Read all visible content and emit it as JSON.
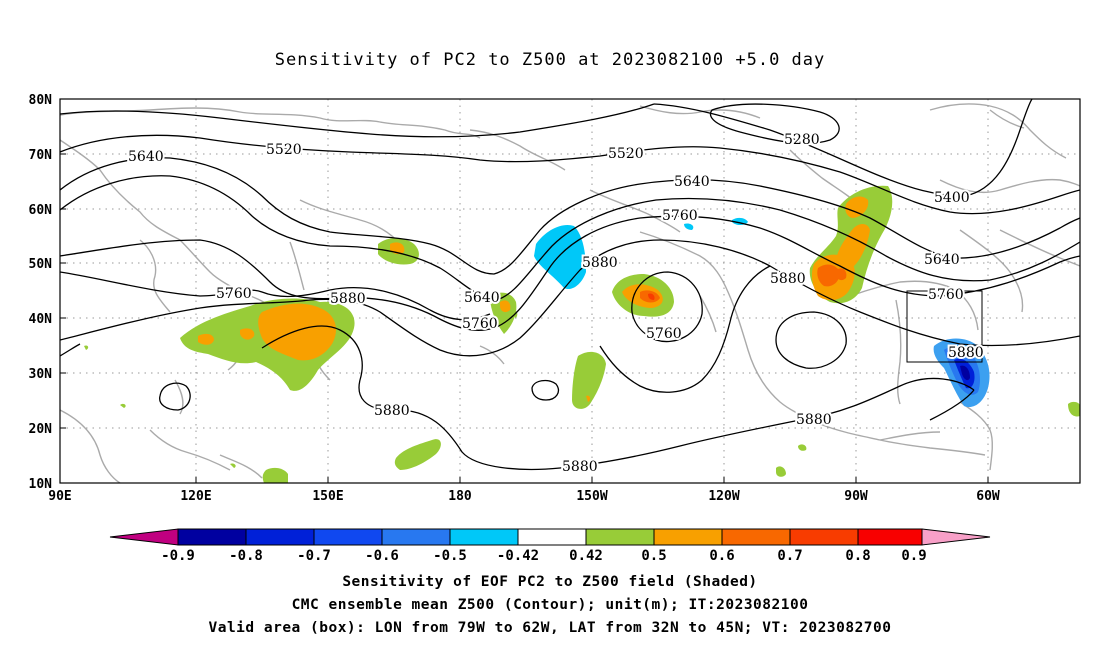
{
  "title": "Sensitivity of PC2 to Z500 at 2023082100 +5.0 day",
  "lat_labels": [
    "80N",
    "70N",
    "60N",
    "50N",
    "40N",
    "30N",
    "20N",
    "10N"
  ],
  "lon_labels": [
    "90E",
    "120E",
    "150E",
    "180",
    "150W",
    "120W",
    "90W",
    "60W"
  ],
  "contour_labels": [
    "5280",
    "5400",
    "5520",
    "5520",
    "5640",
    "5640",
    "5640",
    "5640",
    "5760",
    "5760",
    "5760",
    "5760",
    "5760",
    "5880",
    "5880",
    "5880",
    "5880",
    "5880",
    "5880",
    "5880"
  ],
  "colorbar": {
    "labels": [
      "-0.9",
      "-0.8",
      "-0.7",
      "-0.6",
      "-0.5",
      "-0.42",
      "0.42",
      "0.5",
      "0.6",
      "0.7",
      "0.8",
      "0.9"
    ],
    "colors": [
      "#c00080",
      "#0000a0",
      "#0020d8",
      "#1048f0",
      "#2878f0",
      "#3ca0f0",
      "#00c8f8",
      "#ffffff",
      "#98cc38",
      "#f8a000",
      "#f86800",
      "#f83c00",
      "#f80000",
      "#f8a0c8"
    ]
  },
  "captions": [
    "Sensitivity of EOF PC2 to Z500 field (Shaded)",
    "CMC ensemble mean Z500 (Contour); unit(m); IT:2023082100",
    "Valid area (box): LON from 79W to 62W, LAT from 32N to 45N; VT: 2023082700"
  ]
}
